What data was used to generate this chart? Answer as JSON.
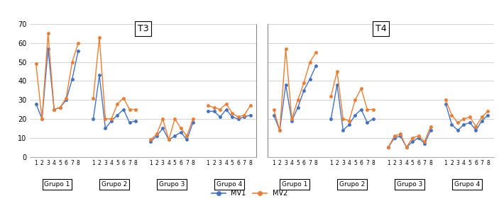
{
  "title_left": "T3",
  "title_right": "T4",
  "grupos": [
    "Grupo 1",
    "Grupo 2",
    "Grupo 3",
    "Grupo 4"
  ],
  "x_ticks": [
    1,
    2,
    3,
    4,
    5,
    6,
    7,
    8
  ],
  "ylim": [
    0,
    70
  ],
  "yticks": [
    0,
    10,
    20,
    30,
    40,
    50,
    60,
    70
  ],
  "color_mv1": "#4472C4",
  "color_mv2": "#ED7D31",
  "legend_mv1": "MV1",
  "legend_mv2": "MV2",
  "T3_MV1_G1": [
    28,
    20,
    57,
    25,
    26,
    30,
    41,
    56
  ],
  "T3_MV2_G1": [
    49,
    20,
    65,
    25,
    26,
    31,
    50,
    60
  ],
  "T3_MV1_G2": [
    20,
    43,
    15,
    19,
    22,
    25,
    18,
    19
  ],
  "T3_MV2_G2": [
    31,
    63,
    20,
    20,
    28,
    31,
    25,
    25
  ],
  "T3_MV1_G3": [
    8,
    11,
    15,
    9,
    11,
    13,
    9,
    18
  ],
  "T3_MV2_G3": [
    9,
    12,
    20,
    9,
    20,
    15,
    11,
    20
  ],
  "T3_MV1_G4": [
    24,
    24,
    21,
    25,
    21,
    20,
    21,
    22
  ],
  "T3_MV2_G4": [
    27,
    26,
    25,
    28,
    23,
    21,
    22,
    27
  ],
  "T4_MV1_G1": [
    22,
    14,
    38,
    19,
    26,
    35,
    41,
    48
  ],
  "T4_MV2_G1": [
    25,
    14,
    57,
    20,
    30,
    39,
    50,
    55
  ],
  "T4_MV1_G2": [
    20,
    38,
    14,
    17,
    22,
    25,
    18,
    20
  ],
  "T4_MV2_G2": [
    32,
    45,
    20,
    19,
    30,
    36,
    25,
    25
  ],
  "T4_MV1_G3": [
    5,
    10,
    11,
    5,
    8,
    10,
    7,
    14
  ],
  "T4_MV2_G3": [
    5,
    11,
    12,
    5,
    10,
    11,
    8,
    16
  ],
  "T4_MV1_G4": [
    28,
    17,
    14,
    17,
    18,
    14,
    19,
    22
  ],
  "T4_MV2_G4": [
    30,
    22,
    18,
    20,
    21,
    16,
    21,
    24
  ]
}
